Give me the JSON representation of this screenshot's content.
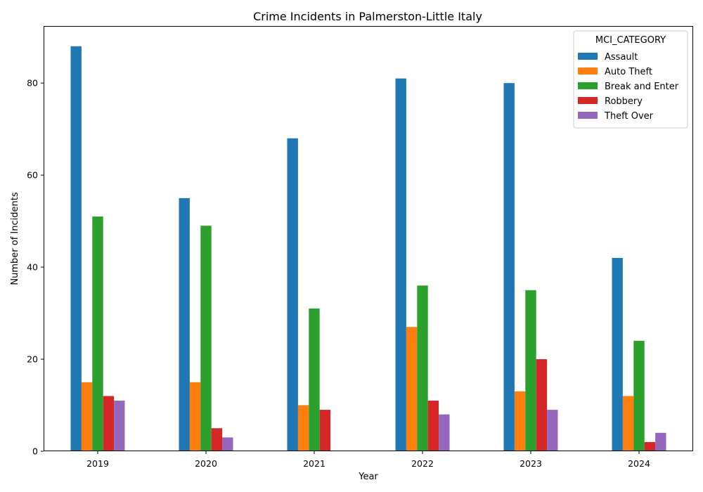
{
  "chart_data": {
    "type": "bar",
    "title": "Crime Incidents in Palmerston-Little Italy",
    "xlabel": "Year",
    "ylabel": "Number of Incidents",
    "categories": [
      "2019",
      "2020",
      "2021",
      "2022",
      "2023",
      "2024"
    ],
    "ylim": [
      0,
      92.4
    ],
    "yticks": [
      0,
      20,
      40,
      60,
      80
    ],
    "legend": {
      "title": "MCI_CATEGORY",
      "position": "top-right"
    },
    "grid": false,
    "series": [
      {
        "name": "Assault",
        "color": "#1f77b4",
        "values": [
          88,
          55,
          68,
          81,
          80,
          42
        ]
      },
      {
        "name": "Auto Theft",
        "color": "#ff7f0e",
        "values": [
          15,
          15,
          10,
          27,
          13,
          12
        ]
      },
      {
        "name": "Break and Enter",
        "color": "#2ca02c",
        "values": [
          51,
          49,
          31,
          36,
          35,
          24
        ]
      },
      {
        "name": "Robbery",
        "color": "#d62728",
        "values": [
          12,
          5,
          9,
          11,
          20,
          2
        ]
      },
      {
        "name": "Theft Over",
        "color": "#9467bd",
        "values": [
          11,
          3,
          0,
          8,
          9,
          4
        ]
      }
    ]
  }
}
